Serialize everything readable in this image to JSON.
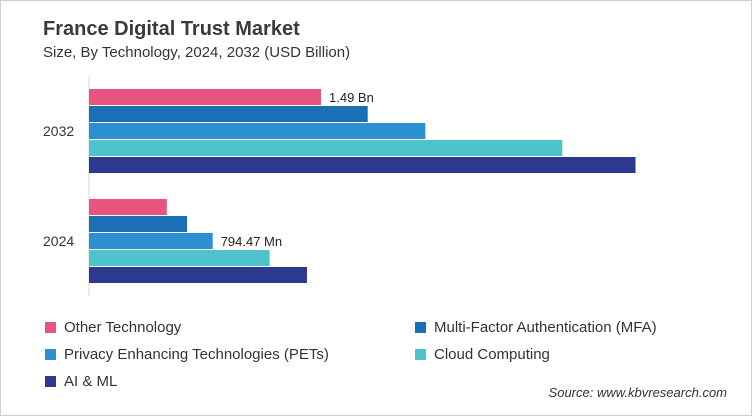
{
  "chart_data": {
    "type": "bar",
    "orientation": "horizontal",
    "title": "France Digital Trust Market",
    "subtitle": "Size, By Technology, 2024, 2032 (USD Billion)",
    "categories": [
      "2032",
      "2024"
    ],
    "xlim": [
      0,
      3.6
    ],
    "grid": false,
    "legend_placement": "bottom",
    "series": [
      {
        "name": "Other Technology",
        "color": "#e8537f",
        "values": [
          1.49,
          0.5
        ]
      },
      {
        "name": "Multi-Factor Authentication (MFA)",
        "color": "#1a6fb5",
        "values": [
          1.79,
          0.63
        ]
      },
      {
        "name": "Privacy Enhancing Technologies (PETs)",
        "color": "#2b8fd2",
        "values": [
          2.16,
          0.79447
        ]
      },
      {
        "name": "Cloud Computing",
        "color": "#4ec3cc",
        "values": [
          3.04,
          1.16
        ]
      },
      {
        "name": "AI & ML",
        "color": "#2b3990",
        "values": [
          3.51,
          1.4
        ]
      }
    ],
    "annotations": [
      {
        "category": "2032",
        "series": "Other Technology",
        "text": "1.49 Bn"
      },
      {
        "category": "2024",
        "series": "Privacy Enhancing Technologies (PETs)",
        "text": "794.47 Mn"
      }
    ]
  },
  "source": "Source: www.kbvresearch.com"
}
